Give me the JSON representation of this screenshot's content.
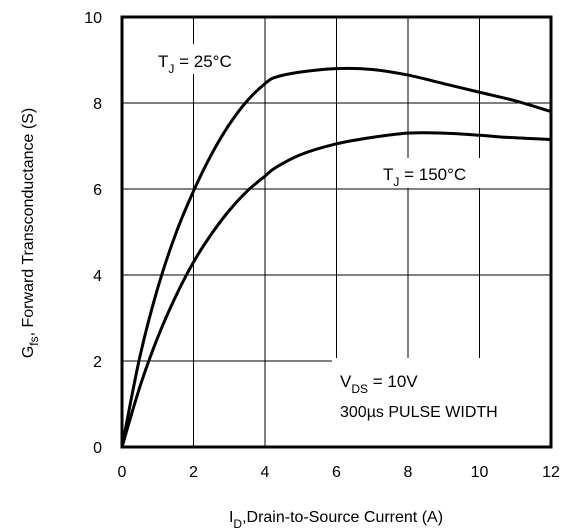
{
  "chart_data": {
    "type": "line",
    "xlabel": {
      "main": "I",
      "sub": "D",
      "rest": ",Drain-to-Source Current (A)"
    },
    "ylabel": {
      "main": "G",
      "sub": "fs",
      "rest": ", Forward Transconductance (S)"
    },
    "xlim": [
      0,
      12
    ],
    "ylim": [
      0,
      10
    ],
    "xticks": [
      "0",
      "2",
      "4",
      "6",
      "8",
      "10",
      "12"
    ],
    "yticks": [
      "0",
      "2",
      "4",
      "6",
      "8",
      "10"
    ],
    "grid": true,
    "series": [
      {
        "name": {
          "main": "T",
          "sub": "J",
          "rest": " = 25°C"
        },
        "x": [
          0,
          0.5,
          1,
          1.5,
          2,
          2.5,
          3,
          3.5,
          4,
          4.3,
          5,
          6,
          7,
          8,
          9,
          10,
          11,
          12
        ],
        "y": [
          0,
          2.1,
          3.7,
          4.95,
          5.95,
          6.8,
          7.5,
          8.05,
          8.45,
          8.6,
          8.72,
          8.8,
          8.78,
          8.65,
          8.45,
          8.25,
          8.05,
          7.8
        ]
      },
      {
        "name": {
          "main": "T",
          "sub": "J",
          "rest": " = 150°C"
        },
        "x": [
          0,
          0.5,
          1,
          1.5,
          2,
          2.5,
          3,
          3.5,
          4,
          4.3,
          5,
          6,
          7,
          8,
          9,
          10,
          10.8,
          12
        ],
        "y": [
          0,
          1.4,
          2.55,
          3.5,
          4.3,
          4.95,
          5.5,
          5.95,
          6.3,
          6.5,
          6.8,
          7.05,
          7.2,
          7.3,
          7.3,
          7.25,
          7.2,
          7.15
        ]
      }
    ],
    "annotation": {
      "line1": {
        "main": "V",
        "sub": "DS",
        "rest": " = 10V"
      },
      "line2": "300µs PULSE WIDTH"
    }
  }
}
